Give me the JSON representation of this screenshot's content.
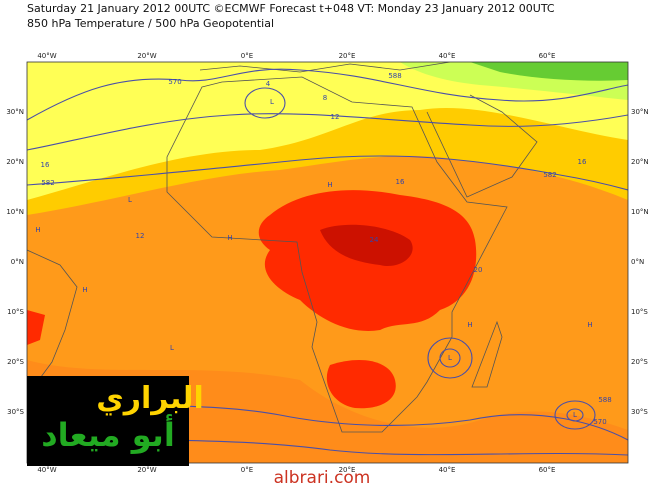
{
  "header": {
    "line1": "Saturday 21 January 2012 00UTC ©ECMWF Forecast t+048 VT: Monday 23 January 2012 00UTC",
    "line2": "850 hPa Temperature / 500 hPa Geopotential"
  },
  "map": {
    "longitude_labels": [
      "40°W",
      "20°W",
      "0°E",
      "20°E",
      "40°E",
      "60°E"
    ],
    "latitude_labels": [
      "30°N",
      "20°N",
      "10°N",
      "0°N",
      "10°S",
      "20°S",
      "30°S"
    ],
    "contour_labels": [
      "570",
      "582",
      "588",
      "16",
      "24",
      "12",
      "4",
      "8",
      "16",
      "20",
      "582",
      "588",
      "570",
      "16",
      "12"
    ],
    "pressure_labels": [
      "L",
      "L",
      "H",
      "H",
      "H",
      "L",
      "H",
      "L",
      "H",
      "H",
      "L"
    ]
  },
  "logo": {
    "line1": "البراري",
    "line2": "أبو ميعاد"
  },
  "watermark": "albrari.com"
}
